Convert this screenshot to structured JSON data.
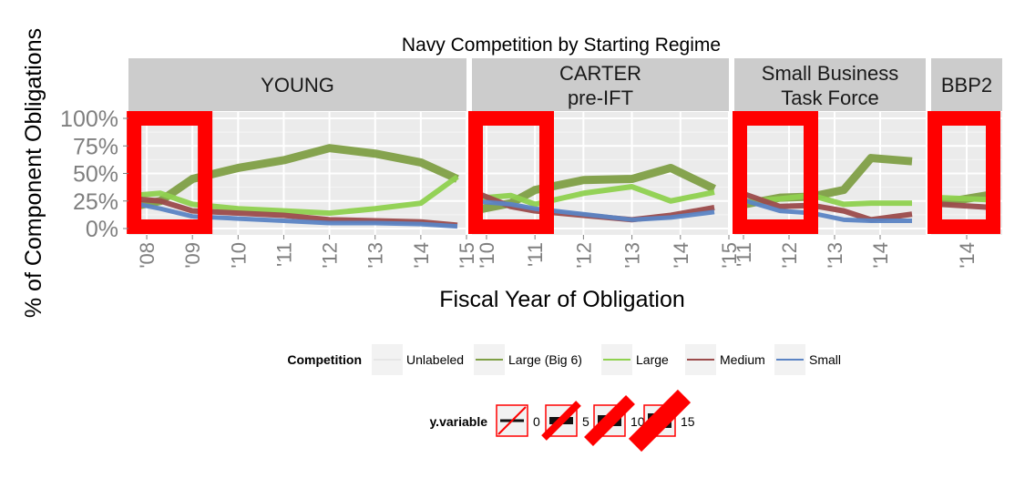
{
  "chart_data": {
    "type": "line",
    "title": "Navy Competition by Starting Regime",
    "xlabel": "Fiscal Year of Obligation",
    "ylabel": "% of Component Obligations",
    "y_ticks": [
      "0%",
      "25%",
      "50%",
      "75%",
      "100%"
    ],
    "ylim": [
      0,
      1
    ],
    "grid": true,
    "colors": {
      "Large (Big 6)": "#7f9f46",
      "Large": "#8fd14f",
      "Medium": "#9b4b4b",
      "Small": "#5b84c4",
      "highlight": "#ff0000",
      "strip": "#cccccc",
      "panel": "#ebebeb"
    },
    "legend": {
      "position": "bottom",
      "competition": {
        "title": "Competition",
        "items": [
          "Unlabeled",
          "Large (Big 6)",
          "Large",
          "Medium",
          "Small"
        ]
      },
      "yvariable": {
        "title": "y.variable",
        "items": [
          "0",
          "5",
          "10",
          "15"
        ]
      }
    },
    "panels": [
      {
        "strip": [
          "YOUNG"
        ],
        "xlim": [
          2007.6,
          2015
        ],
        "x_ticks": [
          "'08",
          "'09",
          "'10",
          "'11",
          "'12",
          "'13",
          "'14",
          "'15"
        ],
        "highlight_x": 2008.5,
        "series": [
          {
            "name": "Large (Big 6)",
            "x": [
              2007.7,
              2008.3,
              2009.0,
              2010.0,
              2011.0,
              2012.0,
              2013.0,
              2014.0,
              2014.8
            ],
            "y": [
              0.2,
              0.25,
              0.45,
              0.55,
              0.62,
              0.73,
              0.68,
              0.6,
              0.45
            ]
          },
          {
            "name": "Large",
            "x": [
              2007.7,
              2008.3,
              2009.0,
              2010.0,
              2011.0,
              2012.0,
              2013.0,
              2014.0,
              2014.8
            ],
            "y": [
              0.3,
              0.32,
              0.22,
              0.18,
              0.16,
              0.14,
              0.18,
              0.23,
              0.47
            ]
          },
          {
            "name": "Medium",
            "x": [
              2007.7,
              2008.3,
              2009.0,
              2010.0,
              2011.0,
              2012.0,
              2013.0,
              2014.0,
              2014.8
            ],
            "y": [
              0.27,
              0.25,
              0.16,
              0.14,
              0.12,
              0.08,
              0.07,
              0.06,
              0.03
            ]
          },
          {
            "name": "Small",
            "x": [
              2007.7,
              2008.3,
              2009.0,
              2010.0,
              2011.0,
              2012.0,
              2013.0,
              2014.0,
              2014.8
            ],
            "y": [
              0.23,
              0.18,
              0.11,
              0.09,
              0.07,
              0.05,
              0.05,
              0.04,
              0.02
            ]
          }
        ]
      },
      {
        "strip": [
          "CARTER",
          "pre-IFT"
        ],
        "xlim": [
          2009.7,
          2015
        ],
        "x_ticks": [
          "'10",
          "'11",
          "'12",
          "'13",
          "'14",
          "'15"
        ],
        "highlight_x": 2009.9,
        "series": [
          {
            "name": "Large (Big 6)",
            "x": [
              2009.7,
              2010.5,
              2011.0,
              2012.0,
              2013.0,
              2013.8,
              2014.7
            ],
            "y": [
              0.16,
              0.23,
              0.35,
              0.44,
              0.45,
              0.55,
              0.36
            ]
          },
          {
            "name": "Large",
            "x": [
              2009.7,
              2010.5,
              2011.0,
              2012.0,
              2013.0,
              2013.8,
              2014.7
            ],
            "y": [
              0.27,
              0.3,
              0.22,
              0.32,
              0.38,
              0.25,
              0.33
            ]
          },
          {
            "name": "Medium",
            "x": [
              2009.7,
              2010.5,
              2011.0,
              2012.0,
              2013.0,
              2013.8,
              2014.7
            ],
            "y": [
              0.34,
              0.2,
              0.16,
              0.12,
              0.08,
              0.12,
              0.19
            ]
          },
          {
            "name": "Small",
            "x": [
              2009.7,
              2010.5,
              2011.0,
              2012.0,
              2013.0,
              2013.8,
              2014.7
            ],
            "y": [
              0.25,
              0.22,
              0.18,
              0.13,
              0.08,
              0.1,
              0.15
            ]
          }
        ]
      },
      {
        "strip": [
          "Small Business",
          "Task Force"
        ],
        "xlim": [
          2010.8,
          2015
        ],
        "x_ticks": [
          "'11",
          "'12",
          "'13",
          "'14"
        ],
        "highlight_x": 2011.7,
        "series": [
          {
            "name": "Large (Big 6)",
            "x": [
              2010.9,
              2011.8,
              2012.5,
              2013.2,
              2013.8,
              2014.7
            ],
            "y": [
              0.21,
              0.28,
              0.29,
              0.35,
              0.64,
              0.61
            ]
          },
          {
            "name": "Large",
            "x": [
              2010.9,
              2011.8,
              2012.5,
              2013.2,
              2013.8,
              2014.7
            ],
            "y": [
              0.24,
              0.27,
              0.3,
              0.22,
              0.23,
              0.23
            ]
          },
          {
            "name": "Medium",
            "x": [
              2010.9,
              2011.8,
              2012.5,
              2013.2,
              2013.8,
              2014.7
            ],
            "y": [
              0.33,
              0.2,
              0.21,
              0.16,
              0.08,
              0.13
            ]
          },
          {
            "name": "Small",
            "x": [
              2010.9,
              2011.8,
              2012.5,
              2013.2,
              2013.8,
              2014.7
            ],
            "y": [
              0.27,
              0.16,
              0.14,
              0.08,
              0.07,
              0.07
            ]
          }
        ]
      },
      {
        "strip": [
          "BBP2"
        ],
        "xlim": [
          2013.6,
          2014.4
        ],
        "x_ticks": [
          "'14"
        ],
        "highlight_x": 2013.85,
        "series": [
          {
            "name": "Large (Big 6)",
            "x": [
              2013.7,
              2014.3
            ],
            "y": [
              0.23,
              0.31
            ]
          },
          {
            "name": "Large",
            "x": [
              2013.7,
              2014.3
            ],
            "y": [
              0.28,
              0.26
            ]
          },
          {
            "name": "Medium",
            "x": [
              2013.7,
              2014.3
            ],
            "y": [
              0.22,
              0.19
            ]
          }
        ]
      }
    ]
  }
}
